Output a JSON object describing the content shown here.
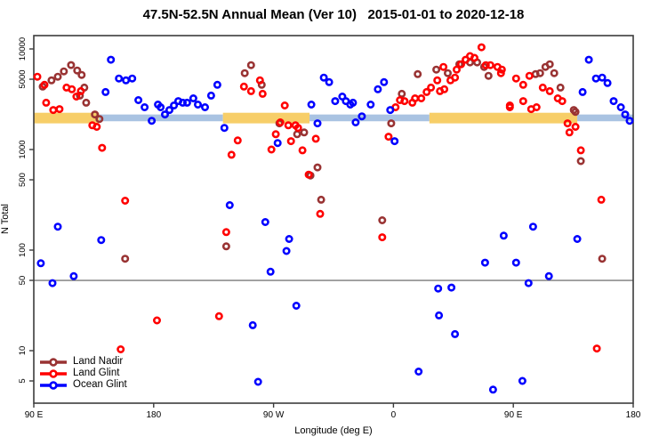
{
  "title": "47.5N-52.5N Annual Mean (Ver 10)   2015-01-01 to 2020-12-18",
  "colors": {
    "land_nadir": "#993333",
    "land_glint": "#FF0000",
    "ocean_glint": "#0000FF",
    "band_land": "#F7CE68",
    "band_ocean": "#A9C3E2",
    "reference_line": "#7a7a7a",
    "axis": "#3c3c3c"
  },
  "legend": {
    "entries": [
      {
        "label": "Land Nadir",
        "color": "#993333"
      },
      {
        "label": "Land Glint",
        "color": "#FF0000"
      },
      {
        "label": "Ocean Glint",
        "color": "#0000FF"
      }
    ]
  },
  "chart_data": {
    "type": "scatter",
    "title": "47.5N-52.5N Annual Mean (Ver 10)   2015-01-01 to 2020-12-18",
    "xlabel": "Longitude (deg E)",
    "ylabel": "N Total",
    "x_axis": {
      "range_deg": [
        90,
        540
      ],
      "ticks": [
        {
          "deg": 90,
          "label": "90 E"
        },
        {
          "deg": 180,
          "label": "180"
        },
        {
          "deg": 270,
          "label": "90 W"
        },
        {
          "deg": 360,
          "label": "0"
        },
        {
          "deg": 450,
          "label": "90 E"
        },
        {
          "deg": 540,
          "label": "180"
        }
      ]
    },
    "y_axis": {
      "scale": "log",
      "range": [
        3,
        13500
      ],
      "ticks": [
        5,
        10,
        50,
        100,
        500,
        1000,
        5000,
        10000
      ]
    },
    "reference_line_y": 50,
    "surface_band": {
      "land_value_range": [
        1820,
        2320
      ],
      "ocean_value_range": [
        1910,
        2230
      ],
      "segments": [
        {
          "surface": "land",
          "from": 90,
          "to": 139
        },
        {
          "surface": "ocean",
          "from": 139,
          "to": 232
        },
        {
          "surface": "land",
          "from": 232,
          "to": 297
        },
        {
          "surface": "ocean",
          "from": 297,
          "to": 387
        },
        {
          "surface": "land",
          "from": 387,
          "to": 498
        },
        {
          "surface": "ocean",
          "from": 498,
          "to": 540
        }
      ]
    },
    "series": [
      {
        "name": "Land Nadir",
        "color": "#993333",
        "points": [
          [
            96.7,
            4220
          ],
          [
            103.3,
            4870
          ],
          [
            108,
            5290
          ],
          [
            112.6,
            5980
          ],
          [
            118,
            6910
          ],
          [
            122.6,
            6110
          ],
          [
            125.9,
            5510
          ],
          [
            127.9,
            4130
          ],
          [
            124.6,
            3440
          ],
          [
            129.3,
            2920
          ],
          [
            135.9,
            2230
          ],
          [
            139.3,
            2010
          ],
          [
            248.4,
            5740
          ],
          [
            253.1,
            6900
          ],
          [
            261.1,
            4400
          ],
          [
            274.4,
            1820
          ],
          [
            287.7,
            1420
          ],
          [
            293,
            1480
          ],
          [
            303,
            664
          ],
          [
            297.7,
            552
          ],
          [
            305.7,
            317
          ],
          [
            351.6,
            198
          ],
          [
            158.6,
            82
          ],
          [
            234.5,
            109
          ],
          [
            516.7,
            82
          ],
          [
            378.2,
            5620
          ],
          [
            392.2,
            6230
          ],
          [
            400.8,
            5740
          ],
          [
            409.5,
            7050
          ],
          [
            417.5,
            7350
          ],
          [
            422.8,
            7350
          ],
          [
            428.1,
            6630
          ],
          [
            431.4,
            5400
          ],
          [
            366.3,
            3580
          ],
          [
            358.3,
            1820
          ],
          [
            466.7,
            5620
          ],
          [
            470.1,
            5740
          ],
          [
            474.1,
            6630
          ],
          [
            477.4,
            7050
          ],
          [
            480.7,
            5740
          ],
          [
            485.4,
            4130
          ],
          [
            495.4,
            2470
          ],
          [
            496.7,
            2370
          ],
          [
            500.7,
            767
          ]
        ]
      },
      {
        "name": "Land Glint",
        "color": "#FF0000",
        "points": [
          [
            92.7,
            5290
          ],
          [
            98,
            4400
          ],
          [
            114.6,
            4130
          ],
          [
            118.6,
            3970
          ],
          [
            122,
            3360
          ],
          [
            99.3,
            2920
          ],
          [
            104.6,
            2470
          ],
          [
            109.3,
            2520
          ],
          [
            125.3,
            3810
          ],
          [
            133.9,
            1740
          ],
          [
            137.3,
            1680
          ],
          [
            141.3,
            1040
          ],
          [
            247.8,
            4220
          ],
          [
            253.1,
            3810
          ],
          [
            259.8,
            4870
          ],
          [
            261.8,
            3580
          ],
          [
            278.4,
            2740
          ],
          [
            275.1,
            1860
          ],
          [
            281.1,
            1740
          ],
          [
            286.4,
            1740
          ],
          [
            288.4,
            1640
          ],
          [
            271.7,
            1420
          ],
          [
            268.4,
            1000
          ],
          [
            283.1,
            1210
          ],
          [
            291.7,
            981
          ],
          [
            238.4,
            886
          ],
          [
            243.1,
            1230
          ],
          [
            301.7,
            1280
          ],
          [
            296.4,
            563
          ],
          [
            158.6,
            310
          ],
          [
            234.5,
            151
          ],
          [
            305,
            229
          ],
          [
            182.5,
            20
          ],
          [
            229.1,
            22
          ],
          [
            155.2,
            10.3
          ],
          [
            351.6,
            134
          ],
          [
            516,
            317
          ],
          [
            512.7,
            10.5
          ],
          [
            356.3,
            1340
          ],
          [
            361.6,
            2630
          ],
          [
            364.9,
            3100
          ],
          [
            368.3,
            3030
          ],
          [
            374.2,
            2920
          ],
          [
            376.2,
            3230
          ],
          [
            380.9,
            3230
          ],
          [
            384.9,
            3730
          ],
          [
            388.2,
            4130
          ],
          [
            392.9,
            4870
          ],
          [
            394.9,
            3810
          ],
          [
            398.2,
            3970
          ],
          [
            397.5,
            6630
          ],
          [
            402.8,
            4870
          ],
          [
            406.2,
            5190
          ],
          [
            407.5,
            6230
          ],
          [
            410.8,
            7050
          ],
          [
            414.2,
            7820
          ],
          [
            417.5,
            8490
          ],
          [
            420.8,
            8150
          ],
          [
            426.1,
            10400
          ],
          [
            429.4,
            6900
          ],
          [
            432.8,
            6900
          ],
          [
            438.1,
            6630
          ],
          [
            441.4,
            6230
          ],
          [
            447.4,
            2740
          ],
          [
            440.7,
            5740
          ],
          [
            452.1,
            5080
          ],
          [
            457.4,
            4400
          ],
          [
            462.1,
            5400
          ],
          [
            472.1,
            4130
          ],
          [
            477.4,
            3810
          ],
          [
            483.4,
            3230
          ],
          [
            486.7,
            3030
          ],
          [
            457.4,
            3030
          ],
          [
            463.4,
            2520
          ],
          [
            467.4,
            2630
          ],
          [
            447.4,
            2630
          ],
          [
            490.7,
            1820
          ],
          [
            492.1,
            1480
          ],
          [
            496.7,
            1680
          ],
          [
            500.7,
            981
          ]
        ]
      },
      {
        "name": "Ocean Glint",
        "color": "#0000FF",
        "points": [
          [
            147.9,
            7820
          ],
          [
            153.9,
            5080
          ],
          [
            159.2,
            4870
          ],
          [
            163.9,
            5080
          ],
          [
            143.9,
            3730
          ],
          [
            168.5,
            3100
          ],
          [
            173.2,
            2630
          ],
          [
            183.2,
            2800
          ],
          [
            185.2,
            2630
          ],
          [
            178.5,
            1930
          ],
          [
            188.5,
            2230
          ],
          [
            191.8,
            2470
          ],
          [
            195.2,
            2740
          ],
          [
            198.5,
            3030
          ],
          [
            201.8,
            2920
          ],
          [
            205.1,
            2920
          ],
          [
            209.8,
            3230
          ],
          [
            213.2,
            2800
          ],
          [
            218.5,
            2630
          ],
          [
            223.1,
            3440
          ],
          [
            227.8,
            4400
          ],
          [
            233.1,
            1640
          ],
          [
            273.1,
            1160
          ],
          [
            298.4,
            2800
          ],
          [
            307.7,
            5190
          ],
          [
            311.7,
            4680
          ],
          [
            316.3,
            3030
          ],
          [
            321.6,
            3360
          ],
          [
            324.3,
            3030
          ],
          [
            327.6,
            2800
          ],
          [
            303,
            1820
          ],
          [
            329.6,
            2920
          ],
          [
            331.6,
            1860
          ],
          [
            336.3,
            2140
          ],
          [
            342.9,
            2800
          ],
          [
            348.3,
            3970
          ],
          [
            352.9,
            4680
          ],
          [
            357.6,
            2470
          ],
          [
            360.9,
            1210
          ],
          [
            506.7,
            7820
          ],
          [
            512,
            5080
          ],
          [
            516.7,
            5190
          ],
          [
            520.7,
            4580
          ],
          [
            502,
            3730
          ],
          [
            525.3,
            3030
          ],
          [
            530.7,
            2630
          ],
          [
            534,
            2230
          ],
          [
            537.3,
            1930
          ],
          [
            108,
            171
          ],
          [
            140.6,
            126
          ],
          [
            95.3,
            74
          ],
          [
            104,
            47
          ],
          [
            120,
            55
          ],
          [
            237.1,
            280
          ],
          [
            263.8,
            190
          ],
          [
            281.7,
            129
          ],
          [
            279.7,
            98
          ],
          [
            267.7,
            61
          ],
          [
            287.1,
            28
          ],
          [
            254.4,
            17.9
          ],
          [
            258.4,
            4.9
          ],
          [
            442.8,
            139
          ],
          [
            464.8,
            171
          ],
          [
            498,
            129
          ],
          [
            428.8,
            75
          ],
          [
            452.1,
            75
          ],
          [
            476.7,
            55
          ],
          [
            461.4,
            47
          ],
          [
            393.6,
            41.5
          ],
          [
            403.5,
            42.4
          ],
          [
            394.2,
            22.4
          ],
          [
            406.2,
            14.6
          ],
          [
            378.9,
            6.2
          ],
          [
            456.8,
            5
          ],
          [
            434.8,
            4.1
          ]
        ]
      }
    ],
    "legend_position": "bottom-left"
  }
}
